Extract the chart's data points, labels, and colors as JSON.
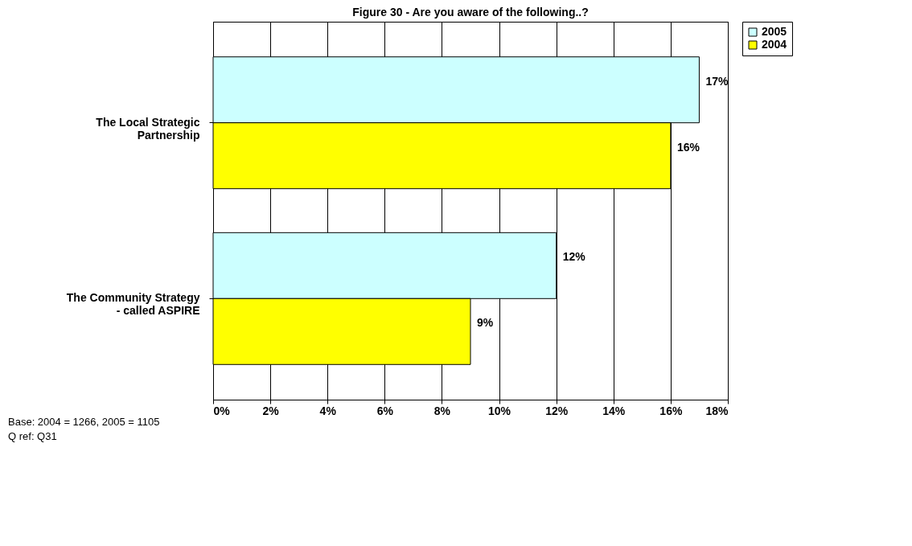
{
  "chart_data": {
    "type": "bar",
    "orientation": "horizontal",
    "title": "Figure 30 - Are you aware of the following..?",
    "categories": [
      "The Local Strategic Partnership",
      "The Community Strategy - called ASPIRE"
    ],
    "series": [
      {
        "name": "2005",
        "color": "#ccffff",
        "values": [
          17,
          12
        ],
        "value_labels": [
          "17%",
          "12%"
        ]
      },
      {
        "name": "2004",
        "color": "#ffff00",
        "values": [
          16,
          9
        ],
        "value_labels": [
          "16%",
          "9%"
        ]
      }
    ],
    "xlim": [
      0,
      18
    ],
    "xticks": [
      {
        "value": 0,
        "label": "0%"
      },
      {
        "value": 2,
        "label": "2%"
      },
      {
        "value": 4,
        "label": "4%"
      },
      {
        "value": 6,
        "label": "6%"
      },
      {
        "value": 8,
        "label": "8%"
      },
      {
        "value": 10,
        "label": "10%"
      },
      {
        "value": 12,
        "label": "12%"
      },
      {
        "value": 14,
        "label": "14%"
      },
      {
        "value": 16,
        "label": "16%"
      },
      {
        "value": 18,
        "label": "18%"
      }
    ],
    "grid": "x",
    "legend": "right",
    "annotations": [
      "Base: 2004 = 1266, 2005 = 1105",
      "Q ref: Q31"
    ]
  }
}
